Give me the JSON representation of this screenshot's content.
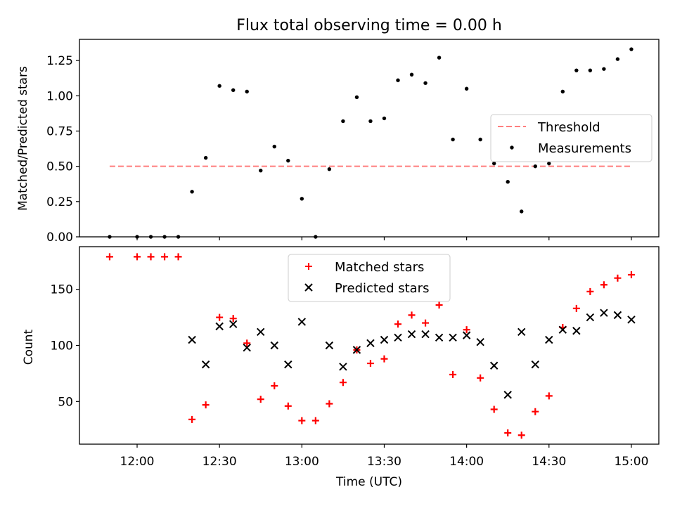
{
  "figure": {
    "title": "Flux total observing time = 0.00 h",
    "xlabel": "Time (UTC)",
    "xticks": [
      "12:00",
      "12:30",
      "13:00",
      "13:30",
      "14:00",
      "14:30",
      "15:00"
    ]
  },
  "chart_data": [
    {
      "type": "scatter",
      "title": "Flux total observing time = 0.00 h",
      "xlabel": "",
      "ylabel": "Matched/Predicted stars",
      "xlim": [
        "11:39",
        "15:10"
      ],
      "ylim": [
        0,
        1.4
      ],
      "yticks": [
        "0.00",
        "0.25",
        "0.50",
        "0.75",
        "1.00",
        "1.25"
      ],
      "legend_position": "center-right",
      "threshold": {
        "name": "Threshold",
        "value": 0.5,
        "x_start": "11:50",
        "x_end": "15:00",
        "color": "#ff7f7f",
        "style": "dashed"
      },
      "series": [
        {
          "name": "Measurements",
          "color": "#000000",
          "marker": "dot",
          "x": [
            "11:50",
            "12:00",
            "12:05",
            "12:10",
            "12:15",
            "12:20",
            "12:25",
            "12:30",
            "12:35",
            "12:40",
            "12:45",
            "12:50",
            "12:55",
            "13:00",
            "13:05",
            "13:10",
            "13:15",
            "13:20",
            "13:25",
            "13:30",
            "13:35",
            "13:40",
            "13:45",
            "13:50",
            "13:55",
            "14:00",
            "14:05",
            "14:10",
            "14:15",
            "14:20",
            "14:25",
            "14:30",
            "14:35",
            "14:40",
            "14:45",
            "14:50",
            "14:55",
            "15:00"
          ],
          "y": [
            0.0,
            0.0,
            0.0,
            0.0,
            0.0,
            0.32,
            0.56,
            1.07,
            1.04,
            1.03,
            0.47,
            0.64,
            0.54,
            0.27,
            0.0,
            0.48,
            0.82,
            0.99,
            0.82,
            0.84,
            1.11,
            1.15,
            1.09,
            1.27,
            0.69,
            1.05,
            0.69,
            0.52,
            0.39,
            0.18,
            0.5,
            0.52,
            1.03,
            1.18,
            1.18,
            1.19,
            1.26,
            1.33
          ]
        }
      ]
    },
    {
      "type": "scatter",
      "xlabel": "Time (UTC)",
      "ylabel": "Count",
      "xlim": [
        "11:39",
        "15:10"
      ],
      "ylim": [
        12,
        188
      ],
      "yticks": [
        "50",
        "100",
        "150"
      ],
      "legend_position": "top-center",
      "series": [
        {
          "name": "Matched stars",
          "color": "#ff0000",
          "marker": "plus",
          "x": [
            "11:50",
            "12:00",
            "12:05",
            "12:10",
            "12:15",
            "12:20",
            "12:25",
            "12:30",
            "12:35",
            "12:40",
            "12:45",
            "12:50",
            "12:55",
            "13:00",
            "13:05",
            "13:10",
            "13:15",
            "13:20",
            "13:25",
            "13:30",
            "13:35",
            "13:40",
            "13:45",
            "13:50",
            "13:55",
            "14:00",
            "14:05",
            "14:10",
            "14:15",
            "14:20",
            "14:25",
            "14:30",
            "14:35",
            "14:40",
            "14:45",
            "14:50",
            "14:55",
            "15:00"
          ],
          "y": [
            179,
            179,
            179,
            179,
            179,
            34,
            47,
            125,
            124,
            102,
            52,
            64,
            46,
            33,
            33,
            48,
            67,
            96,
            84,
            88,
            119,
            127,
            120,
            136,
            74,
            114,
            71,
            43,
            22,
            20,
            41,
            55,
            116,
            133,
            148,
            154,
            160,
            163
          ]
        },
        {
          "name": "Predicted stars",
          "color": "#000000",
          "marker": "x",
          "x": [
            "12:20",
            "12:25",
            "12:30",
            "12:35",
            "12:40",
            "12:45",
            "12:50",
            "12:55",
            "13:00",
            "13:10",
            "13:15",
            "13:20",
            "13:25",
            "13:30",
            "13:35",
            "13:40",
            "13:45",
            "13:50",
            "13:55",
            "14:00",
            "14:05",
            "14:10",
            "14:15",
            "14:20",
            "14:25",
            "14:30",
            "14:35",
            "14:40",
            "14:45",
            "14:50",
            "14:55",
            "15:00"
          ],
          "y": [
            105,
            83,
            117,
            119,
            98,
            112,
            100,
            83,
            121,
            100,
            81,
            96,
            102,
            105,
            107,
            110,
            110,
            107,
            107,
            109,
            103,
            82,
            56,
            112,
            83,
            105,
            114,
            113,
            125,
            129,
            127,
            123
          ]
        }
      ]
    }
  ]
}
